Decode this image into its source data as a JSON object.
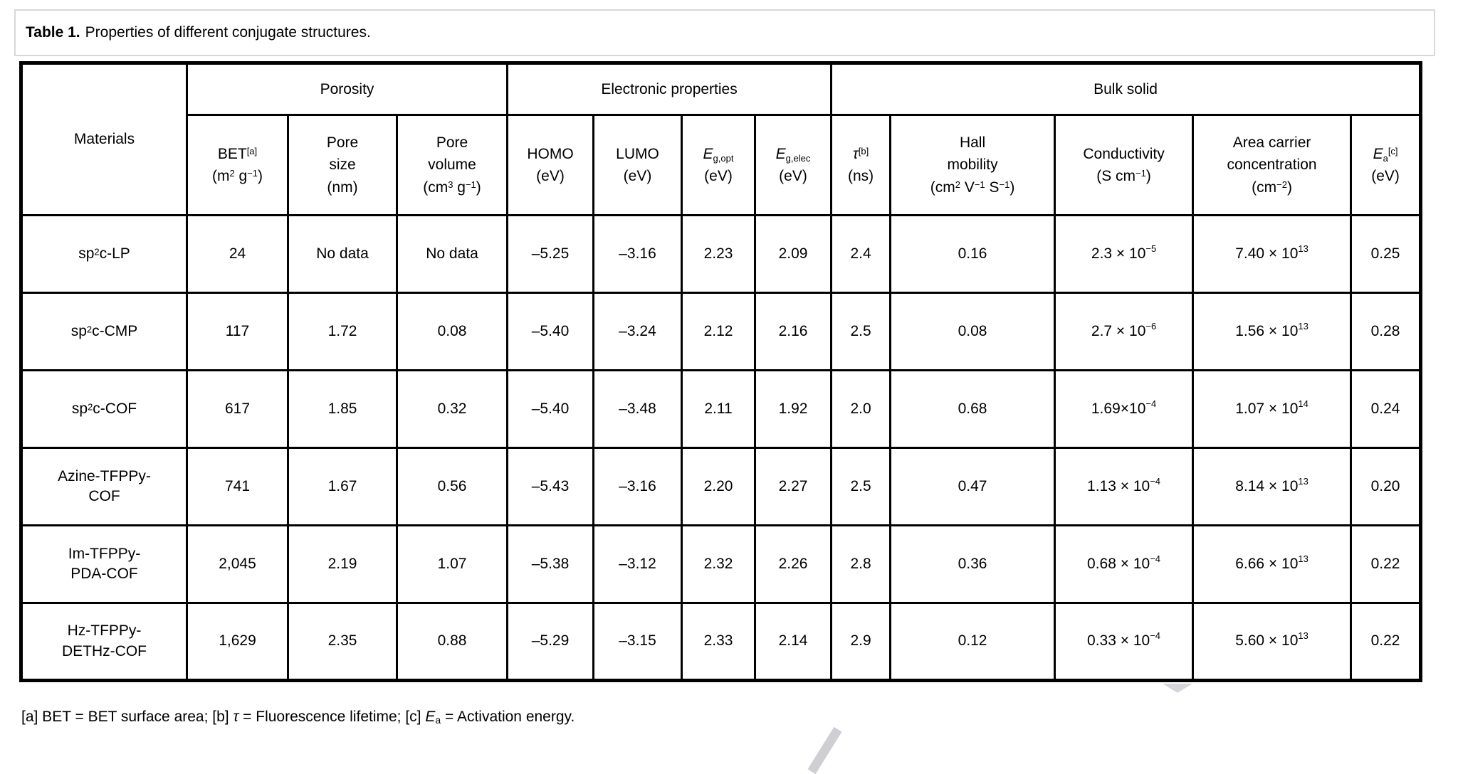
{
  "title": {
    "label": "Table 1.",
    "text": "Properties of different conjugate structures."
  },
  "table": {
    "corner_header": "Materials",
    "groups": [
      {
        "label": "Porosity",
        "colspan": 3
      },
      {
        "label": "Electronic properties",
        "colspan": 4
      },
      {
        "label": "Bulk solid",
        "colspan": 5
      }
    ],
    "columns": [
      "BET^{[a]}\n(m^{2} g^{−1})",
      "Pore\nsize\n(nm)",
      "Pore\nvolume\n(cm^{3} g^{−1})",
      "HOMO\n(eV)",
      "LUMO\n(eV)",
      "*{E}_{g,opt}\n(eV)",
      "*{E}_{g,elec}\n(eV)",
      "*{τ}^{[b]}\n(ns)",
      "Hall\nmobility\n(cm^{2} V^{−1} S^{−1})",
      "Conductivity\n(S cm^{−1})",
      "Area carrier\nconcentration\n(cm^{−2})",
      "*{E}_{a}^{[c]}\n(eV)"
    ],
    "rows": [
      {
        "material": "sp^{2}c-LP",
        "values": [
          "24",
          "No data",
          "No data",
          "–5.25",
          "–3.16",
          "2.23",
          "2.09",
          "2.4",
          "0.16",
          "2.3 × 10^{−5}",
          "7.40 × 10^{13}",
          "0.25"
        ]
      },
      {
        "material": "sp^{2}c-CMP",
        "values": [
          "117",
          "1.72",
          "0.08",
          "–5.40",
          "–3.24",
          "2.12",
          "2.16",
          "2.5",
          "0.08",
          "2.7 × 10^{−6}",
          "1.56 × 10^{13}",
          "0.28"
        ]
      },
      {
        "material": "sp^{2}c-COF",
        "values": [
          "617",
          "1.85",
          "0.32",
          "–5.40",
          "–3.48",
          "2.11",
          "1.92",
          "2.0",
          "0.68",
          "1.69×10^{−4}",
          "1.07 × 10^{14}",
          "0.24"
        ]
      },
      {
        "material": "Azine-TFPPy-\nCOF",
        "values": [
          "741",
          "1.67",
          "0.56",
          "–5.43",
          "–3.16",
          "2.20",
          "2.27",
          "2.5",
          "0.47",
          "1.13 × 10^{−4}",
          "8.14 × 10^{13}",
          "0.20"
        ]
      },
      {
        "material": "Im-TFPPy-\nPDA-COF",
        "values": [
          "2,045",
          "2.19",
          "1.07",
          "–5.38",
          "–3.12",
          "2.32",
          "2.26",
          "2.8",
          "0.36",
          "0.68 × 10^{−4}",
          "6.66 × 10^{13}",
          "0.22"
        ]
      },
      {
        "material": "Hz-TFPPy-\nDETHz-COF",
        "values": [
          "1,629",
          "2.35",
          "0.88",
          "–5.29",
          "–3.15",
          "2.33",
          "2.14",
          "2.9",
          "0.12",
          "0.33 × 10^{−4}",
          "5.60 × 10^{13}",
          "0.22"
        ]
      }
    ]
  },
  "footnote": "[a] BET = BET surface area; [b] *{τ} = Fluorescence lifetime; [c] *{E}_{a} = Activation energy.",
  "colors": {
    "border": "#000000",
    "title_box_border": "#d8d8d8",
    "watermark": "#d2d2d6",
    "background": "#ffffff"
  }
}
